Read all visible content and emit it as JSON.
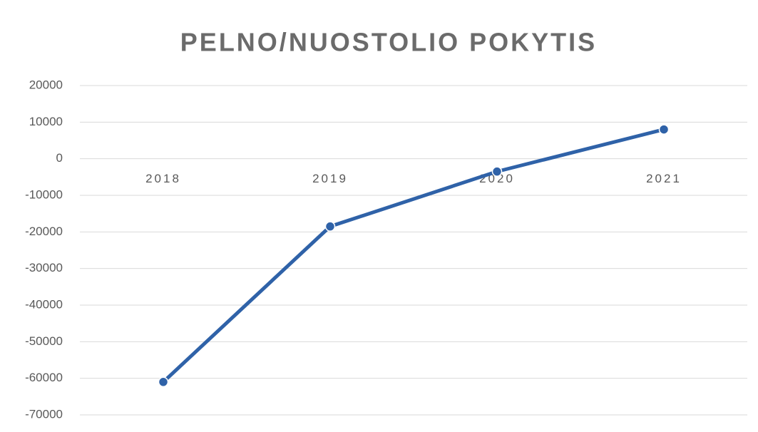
{
  "chart_data": {
    "type": "line",
    "title": "PELNO/NUOSTOLIO POKYTIS",
    "categories": [
      "2018",
      "2019",
      "2020",
      "2021"
    ],
    "series": [
      {
        "name": "Pelno/nuostolio pokytis",
        "color": "#2f62a8",
        "values": [
          -61000,
          -18500,
          -3500,
          8000
        ]
      }
    ],
    "ylim": [
      -70000,
      20000
    ],
    "yticks": [
      -70000,
      -60000,
      -50000,
      -40000,
      -30000,
      -20000,
      -10000,
      0,
      10000,
      20000
    ],
    "grid": true
  }
}
